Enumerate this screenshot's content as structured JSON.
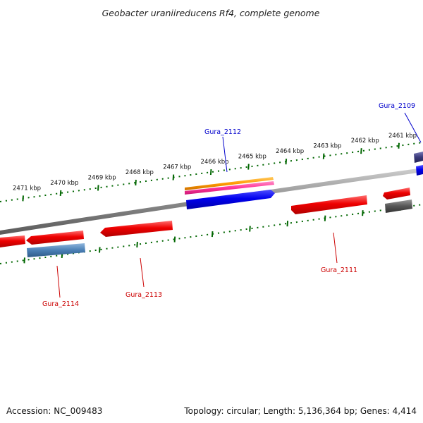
{
  "title": "Geobacter uraniireducens Rf4, complete genome",
  "accession": "Accession: NC_009483",
  "summary": "Topology: circular; Length: 5,136,364 bp; Genes: 4,414",
  "ticks": [
    {
      "label": "2461 kbp"
    },
    {
      "label": "2462 kbp"
    },
    {
      "label": "2463 kbp"
    },
    {
      "label": "2464 kbp"
    },
    {
      "label": "2465 kbp"
    },
    {
      "label": "2466 kbp"
    },
    {
      "label": "2467 kbp"
    },
    {
      "label": "2468 kbp"
    },
    {
      "label": "2469 kbp"
    },
    {
      "label": "2470 kbp"
    },
    {
      "label": "2471 kbp"
    }
  ],
  "gene_labels": [
    {
      "text": "Gura_2109",
      "color": "#0000cc"
    },
    {
      "text": "Gura_2112",
      "color": "#0000cc"
    },
    {
      "text": "Gura_2111",
      "color": "#cc0000"
    },
    {
      "text": "Gura_2113",
      "color": "#cc0000"
    },
    {
      "text": "Gura_2114",
      "color": "#cc0000"
    }
  ],
  "colors": {
    "gene_red": "#ee0000",
    "gene_blue": "#0000ee",
    "gene_orange": "#ff9900",
    "gene_pink": "#ff3399",
    "gene_steel": "#4a7fb5",
    "gene_gray": "#555555",
    "gene_navy": "#3a3a7a",
    "backbone": "#888888",
    "tick": "#006600"
  }
}
